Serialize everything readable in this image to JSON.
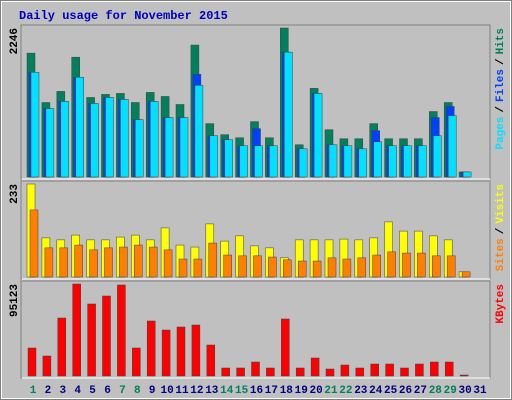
{
  "chart_data": [
    {
      "type": "bar",
      "title": "Daily usage for November 2015",
      "ylim": [
        0,
        2246
      ],
      "yticks": [
        2246
      ],
      "legend_separator": "/",
      "series": [
        {
          "name": "Hits",
          "color": "#00805C",
          "values": [
            1867,
            1123,
            1290,
            1806,
            1199,
            1245,
            1260,
            1123,
            1275,
            1214,
            1093,
            1989,
            805,
            638,
            592,
            835,
            592,
            2246,
            486,
            1336,
            713,
            577,
            577,
            805,
            577,
            577,
            577,
            987,
            1123,
            76,
            0
          ]
        },
        {
          "name": "Files",
          "color": "#0040FF",
          "values": [
            1579,
            1032,
            1139,
            1503,
            1108,
            1199,
            1169,
            865,
            1139,
            896,
            896,
            1548,
            622,
            562,
            471,
            729,
            471,
            1882,
            425,
            1260,
            486,
            471,
            425,
            698,
            471,
            471,
            471,
            896,
            1063,
            76,
            0
          ]
        },
        {
          "name": "Pages",
          "color": "#00E0FF",
          "values": [
            1579,
            1032,
            1139,
            1503,
            1108,
            1199,
            1169,
            865,
            1139,
            896,
            896,
            1381,
            622,
            562,
            471,
            471,
            471,
            1882,
            425,
            1260,
            486,
            471,
            425,
            531,
            471,
            471,
            471,
            622,
            926,
            76,
            0
          ]
        }
      ]
    },
    {
      "type": "bar",
      "ylim": [
        0,
        233
      ],
      "yticks": [
        233
      ],
      "legend_separator": "/",
      "series": [
        {
          "name": "Visits",
          "color": "#FFFF00",
          "values": [
            233,
            98,
            93,
            105,
            93,
            93,
            100,
            105,
            93,
            123,
            80,
            75,
            133,
            90,
            103,
            78,
            73,
            48,
            93,
            93,
            93,
            95,
            93,
            98,
            138,
            115,
            115,
            103,
            93,
            13,
            0
          ]
        },
        {
          "name": "Sites",
          "color": "#FF8000",
          "values": [
            168,
            73,
            73,
            80,
            68,
            73,
            75,
            80,
            75,
            68,
            45,
            45,
            85,
            55,
            53,
            53,
            50,
            43,
            40,
            40,
            48,
            45,
            48,
            55,
            63,
            60,
            60,
            53,
            53,
            13,
            0
          ]
        }
      ]
    },
    {
      "type": "bar",
      "ylim": [
        0,
        95123
      ],
      "yticks": [
        95123
      ],
      "categories": [
        "1",
        "2",
        "3",
        "4",
        "5",
        "6",
        "7",
        "8",
        "9",
        "10",
        "11",
        "12",
        "13",
        "14",
        "15",
        "16",
        "17",
        "18",
        "19",
        "20",
        "21",
        "22",
        "23",
        "24",
        "25",
        "26",
        "27",
        "28",
        "29",
        "30",
        "31"
      ],
      "category_colors": [
        "#00805C",
        "#000080",
        "#000080",
        "#000080",
        "#000080",
        "#000080",
        "#00805C",
        "#00805C",
        "#000080",
        "#000080",
        "#000080",
        "#000080",
        "#000080",
        "#00805C",
        "#00805C",
        "#000080",
        "#000080",
        "#000080",
        "#000080",
        "#000080",
        "#00805C",
        "#00805C",
        "#000080",
        "#000080",
        "#000080",
        "#000080",
        "#000080",
        "#00805C",
        "#00805C",
        "#000080",
        "#000080"
      ],
      "series": [
        {
          "name": "KBytes",
          "color": "#FF0000",
          "values": [
            28952,
            20680,
            59972,
            95123,
            74448,
            82720,
            94094,
            28952,
            56870,
            47564,
            50666,
            52734,
            32054,
            8272,
            8272,
            14476,
            8272,
            58938,
            8272,
            18612,
            7238,
            11374,
            8272,
            12408,
            12408,
            8272,
            12408,
            14476,
            14476,
            1034,
            0
          ]
        }
      ]
    }
  ]
}
